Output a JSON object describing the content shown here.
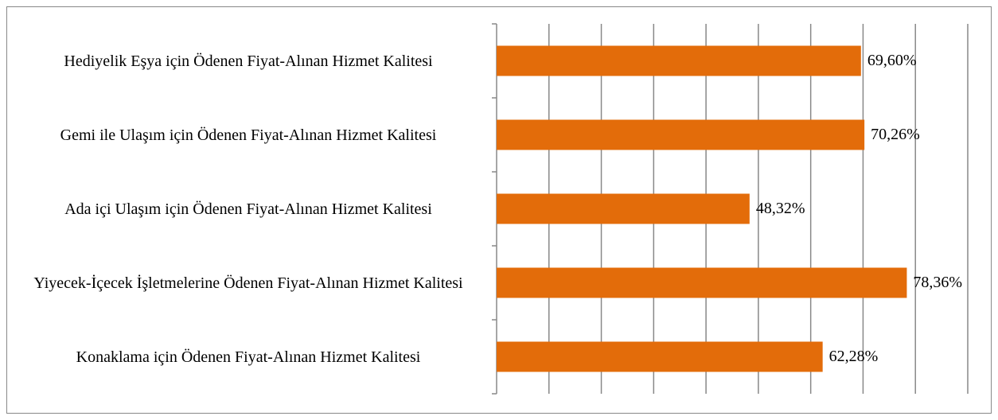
{
  "chart_data": {
    "type": "barh",
    "categories": [
      "Hediyelik Eşya için Ödenen Fiyat-Alınan Hizmet Kalitesi",
      "Gemi ile Ulaşım için Ödenen Fiyat-Alınan Hizmet Kalitesi",
      "Ada içi Ulaşım için Ödenen Fiyat-Alınan Hizmet Kalitesi",
      "Yiyecek-İçecek İşletmelerine Ödenen Fiyat-Alınan Hizmet Kalitesi",
      "Konaklama için Ödenen Fiyat-Alınan Hizmet Kalitesi"
    ],
    "values": [
      69.6,
      70.26,
      48.32,
      78.36,
      62.28
    ],
    "value_labels": [
      "69,60%",
      "70,26%",
      "48,32%",
      "78,36%",
      "62,28%"
    ],
    "color": "#e36c0a",
    "xlim": [
      0,
      90
    ],
    "xticks": [
      0,
      10,
      20,
      30,
      40,
      50,
      60,
      70,
      80,
      90
    ],
    "grid": true
  }
}
